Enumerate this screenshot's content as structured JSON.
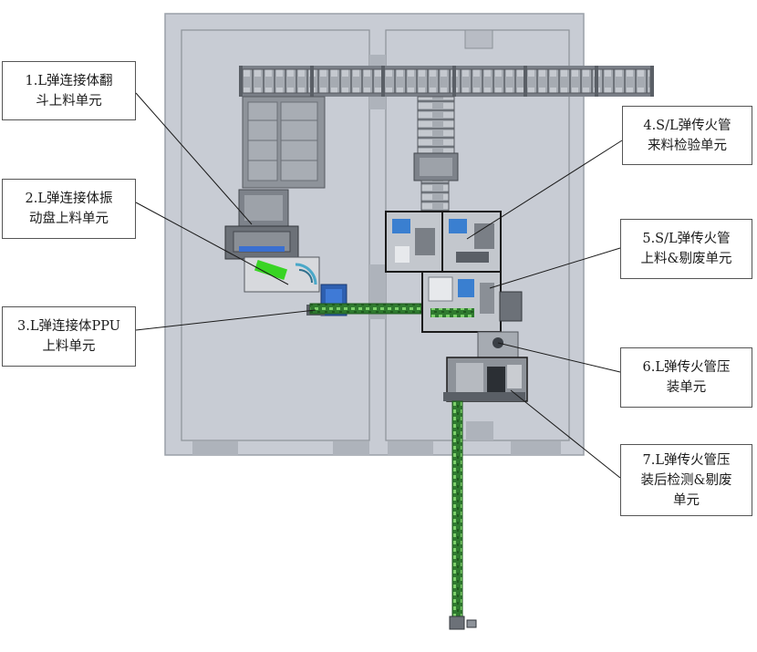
{
  "labels": {
    "l1": "1.L弹连接体翻\n斗上料单元",
    "l2": "2.L弹连接体振\n动盘上料单元",
    "l3": "3.L弹连接体PPU\n上料单元",
    "l4": "4.S/L弹传火管\n来料检验单元",
    "l5": "5.S/L弹传火管\n上料&剔废单元",
    "l6": "6.L弹传火管压\n装单元",
    "l7": "7.L弹传火管压\n装后检测&剔废\n单元"
  },
  "colors": {
    "floor": "#c8ccd4",
    "floor_border": "#9aa0a8",
    "zone_border": "#8c9299",
    "equipment": "#9aa0a8",
    "equipment_dark": "#55595f",
    "conveyor_green": "#3c8c3c",
    "cell_blue": "#3a7fd0",
    "vibrator_green": "#39d424",
    "frame": "#1b1b1b"
  }
}
